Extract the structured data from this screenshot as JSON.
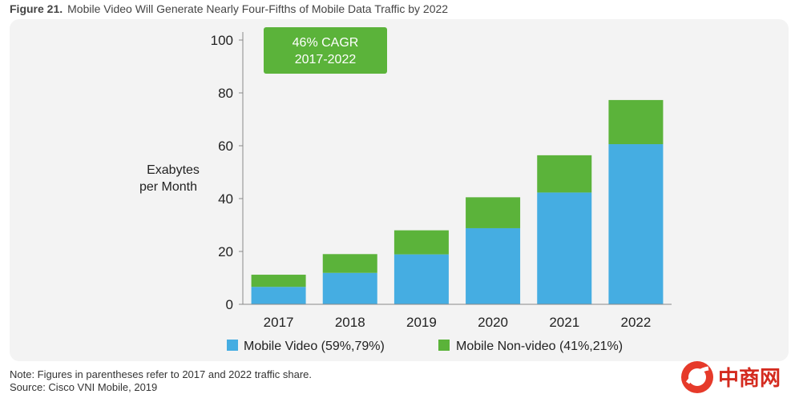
{
  "figure": {
    "number": "Figure 21.",
    "title": "Mobile Video Will Generate Nearly Four-Fifths of Mobile Data Traffic by 2022"
  },
  "callout": {
    "line1": "46% CAGR",
    "line2": "2017-2022",
    "color": "#5bb33a"
  },
  "notes": {
    "note": "Note: Figures in parentheses refer to 2017 and 2022 traffic share.",
    "source": "Source: Cisco VNI Mobile, 2019"
  },
  "logo": {
    "text": "中商网",
    "mark_color": "#e63a2a",
    "text_color": "#d42b1f"
  },
  "chart_data": {
    "type": "bar",
    "stacked": true,
    "title": "Mobile Video Will Generate Nearly Four-Fifths of Mobile Data Traffic by 2022",
    "ylabel_lines": [
      "Exabytes",
      "per Month"
    ],
    "xlabel": "",
    "ylim": [
      0,
      100
    ],
    "yticks": [
      0,
      20,
      40,
      60,
      80,
      100
    ],
    "categories": [
      "2017",
      "2018",
      "2019",
      "2020",
      "2021",
      "2022"
    ],
    "series": [
      {
        "name": "Mobile Video (59%,79%)",
        "color": "#45ade2",
        "values": [
          6.6,
          11.9,
          18.9,
          28.8,
          42.3,
          60.6
        ]
      },
      {
        "name": "Mobile Non-video (41%,21%)",
        "color": "#5bb33a",
        "values": [
          4.6,
          7.1,
          9.1,
          11.7,
          14.1,
          16.7
        ]
      }
    ],
    "grid": false,
    "legend_position": "bottom"
  }
}
